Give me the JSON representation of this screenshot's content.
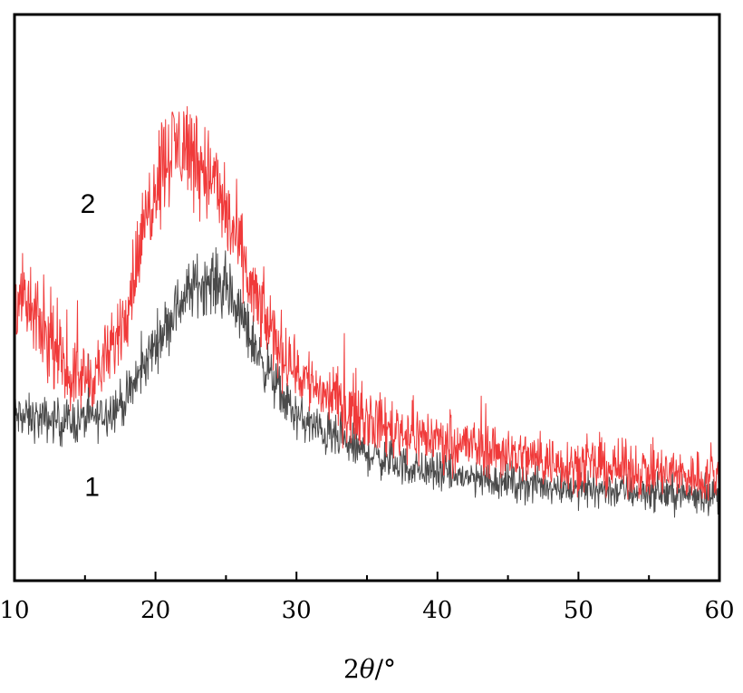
{
  "chart_data": {
    "type": "line",
    "title": "",
    "xlabel_prefix": "2",
    "xlabel_symbol": "θ",
    "xlabel_suffix": "/°",
    "ylabel": "",
    "xlim": [
      10,
      60
    ],
    "ylim": [
      0,
      100
    ],
    "x_ticks": [
      10,
      20,
      30,
      40,
      50,
      60
    ],
    "x_tick_labels": [
      "10",
      "20",
      "30",
      "40",
      "50",
      "60"
    ],
    "grid": false,
    "legend": "none",
    "series": [
      {
        "name": "1",
        "color": "#4a4a4a",
        "noise": 2.8,
        "x": [
          10,
          12,
          14,
          16,
          18,
          20,
          21,
          22,
          23,
          24,
          25,
          26,
          27,
          28,
          29,
          30,
          32,
          34,
          36,
          38,
          40,
          42,
          44,
          46,
          48,
          50,
          52,
          54,
          56,
          58,
          60
        ],
        "values": [
          29,
          28.5,
          28,
          29,
          32,
          42,
          46,
          50,
          52.5,
          53,
          51.5,
          47,
          41.5,
          37,
          32.5,
          29,
          26,
          23.5,
          21.5,
          20,
          19,
          18.3,
          17.8,
          17.2,
          16.8,
          16.4,
          16,
          15.8,
          15.5,
          15.2,
          15
        ]
      },
      {
        "name": "2",
        "color": "#f03a3a",
        "noise": 3.8,
        "x": [
          10,
          11,
          12,
          13,
          14,
          15,
          16,
          17,
          18,
          19,
          20,
          21,
          22,
          23,
          24,
          25,
          26,
          27,
          28,
          29,
          30,
          31,
          32,
          34,
          36,
          38,
          40,
          42,
          44,
          46,
          48,
          50,
          52,
          54,
          56,
          58,
          60
        ],
        "values": [
          51,
          48,
          44,
          40,
          36,
          36,
          37,
          41,
          49,
          60,
          71,
          76,
          77,
          75,
          71,
          65,
          58,
          50,
          45,
          40.5,
          37,
          35,
          33,
          30,
          27.5,
          26,
          25,
          24,
          23,
          22,
          21,
          20.5,
          20,
          19.5,
          19,
          18.5,
          18
        ]
      }
    ],
    "annotations": [
      {
        "text": "2",
        "x": 15.2,
        "y": 65
      },
      {
        "text": "1",
        "x": 15.5,
        "y": 15
      }
    ]
  }
}
